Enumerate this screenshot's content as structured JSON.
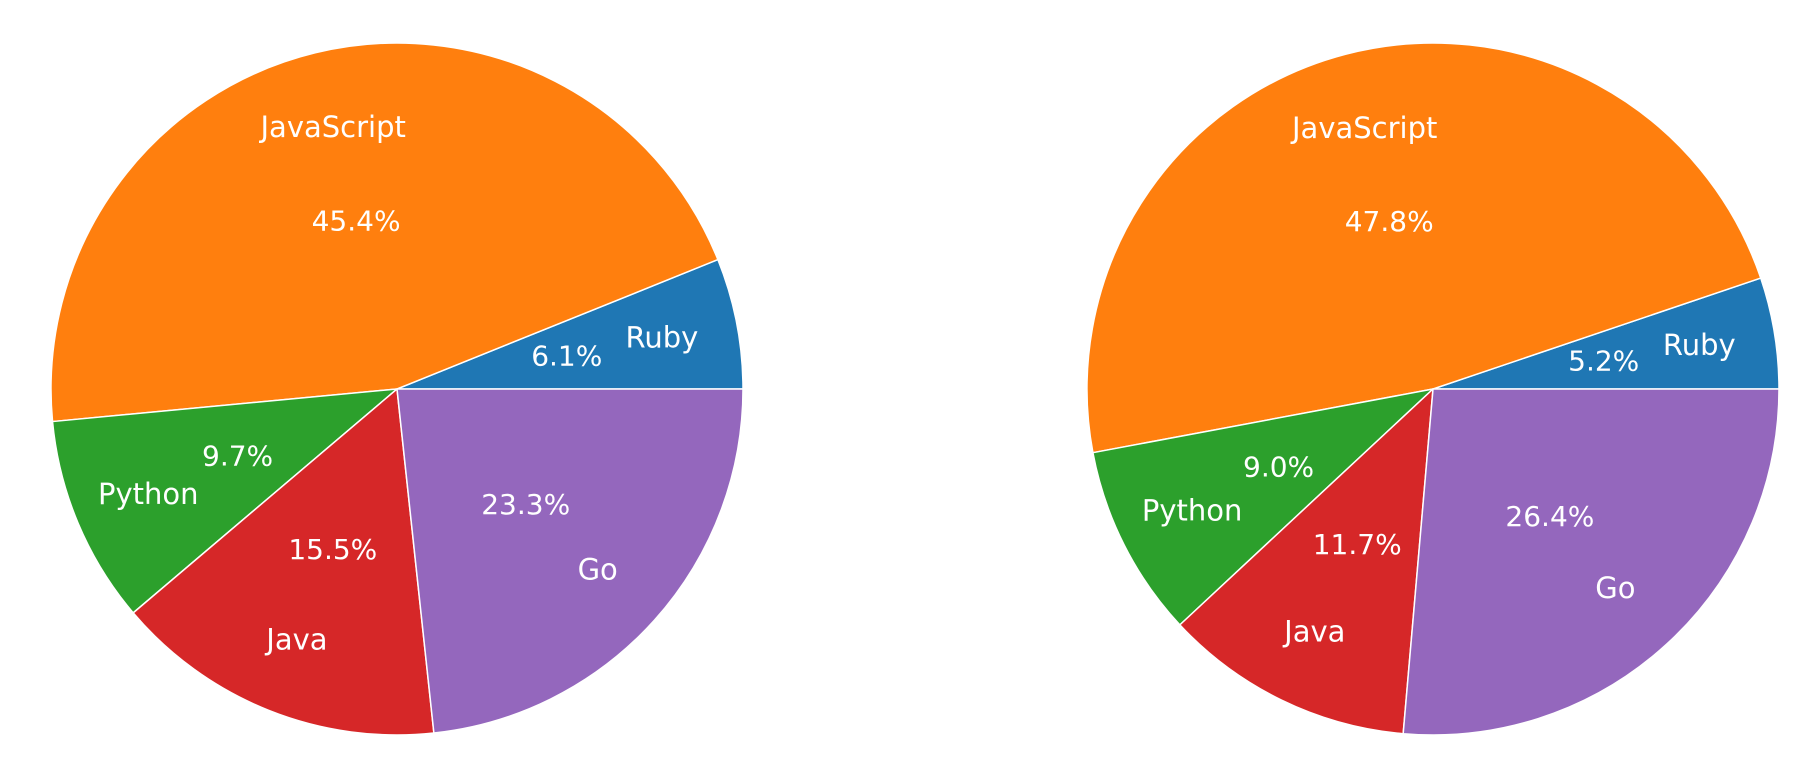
{
  "chart_data": [
    {
      "type": "pie",
      "title": "",
      "categories": [
        "Ruby",
        "JavaScript",
        "Python",
        "Java",
        "Go"
      ],
      "values": [
        6.1,
        45.4,
        9.7,
        15.5,
        23.3
      ],
      "percent_labels": [
        "6.1%",
        "45.4%",
        "9.7%",
        "15.5%",
        "23.3%"
      ],
      "colors": [
        "#1f77b4",
        "#ff7f0e",
        "#2ca02c",
        "#d62728",
        "#9467bd"
      ],
      "start_angle": 0,
      "direction": "counterclockwise",
      "legend": "none"
    },
    {
      "type": "pie",
      "title": "",
      "categories": [
        "Ruby",
        "JavaScript",
        "Python",
        "Java",
        "Go"
      ],
      "values": [
        5.2,
        47.8,
        9.0,
        11.7,
        26.4
      ],
      "percent_labels": [
        "5.2%",
        "47.8%",
        "9.0%",
        "11.7%",
        "26.4%"
      ],
      "colors": [
        "#1f77b4",
        "#ff7f0e",
        "#2ca02c",
        "#d62728",
        "#9467bd"
      ],
      "start_angle": 0,
      "direction": "counterclockwise",
      "legend": "none"
    }
  ]
}
